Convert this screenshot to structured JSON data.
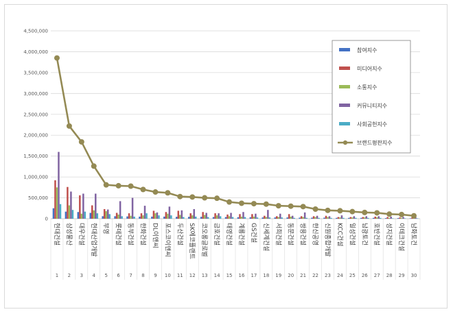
{
  "chart_data": {
    "type": "bar",
    "title": "",
    "xlabel": "",
    "ylabel": "",
    "ylim": [
      0,
      4500000
    ],
    "yticks": [
      "0",
      "500,000",
      "1,000,000",
      "1,500,000",
      "2,000,000",
      "2,500,000",
      "3,000,000",
      "3,500,000",
      "4,000,000",
      "4,500,000"
    ],
    "grid": true,
    "legend_position": "right",
    "ranks": [
      "1",
      "2",
      "3",
      "4",
      "5",
      "6",
      "7",
      "8",
      "9",
      "10",
      "11",
      "12",
      "13",
      "14",
      "15",
      "16",
      "17",
      "18",
      "19",
      "20",
      "21",
      "22",
      "23",
      "24",
      "25",
      "26",
      "27",
      "28",
      "29",
      "30"
    ],
    "categories": [
      "현대건설",
      "삼성물산",
      "대우건설",
      "현대산업개발",
      "부영",
      "롯데건설",
      "동부건설",
      "한화건설",
      "DL이앤씨",
      "포스코이앤씨",
      "두산건설",
      "SK에코플랜트",
      "코오롱글로벌",
      "금호건설",
      "태영건설",
      "계룡건설",
      "GS건설",
      "신세계건설",
      "서희건설",
      "동문건설",
      "쌍용건설",
      "한신공영",
      "신원종합개발",
      "KCC건설",
      "일성건설",
      "남광토건",
      "호반건설",
      "성지건설",
      "이테크건설",
      "남화토건"
    ],
    "series": [
      {
        "name": "참여지수",
        "color": "#4472c4",
        "kind": "bar",
        "values": [
          250000,
          170000,
          160000,
          140000,
          60000,
          60000,
          55000,
          50000,
          50000,
          50000,
          45000,
          45000,
          45000,
          40000,
          40000,
          35000,
          35000,
          30000,
          30000,
          30000,
          25000,
          25000,
          25000,
          20000,
          20000,
          20000,
          20000,
          15000,
          15000,
          10000
        ]
      },
      {
        "name": "미디어지수",
        "color": "#c0504d",
        "kind": "bar",
        "values": [
          920000,
          760000,
          560000,
          320000,
          230000,
          140000,
          130000,
          130000,
          190000,
          160000,
          190000,
          130000,
          160000,
          130000,
          100000,
          110000,
          110000,
          70000,
          60000,
          110000,
          60000,
          60000,
          70000,
          40000,
          40000,
          40000,
          50000,
          40000,
          30000,
          30000
        ]
      },
      {
        "name": "소통지수",
        "color": "#9bbb59",
        "kind": "bar",
        "values": [
          750000,
          320000,
          120000,
          200000,
          180000,
          100000,
          70000,
          80000,
          130000,
          120000,
          90000,
          80000,
          90000,
          80000,
          60000,
          50000,
          50000,
          40000,
          40000,
          50000,
          40000,
          40000,
          40000,
          30000,
          30000,
          30000,
          30000,
          20000,
          20000,
          20000
        ]
      },
      {
        "name": "커뮤니티지수",
        "color": "#8064a2",
        "kind": "bar",
        "values": [
          1600000,
          650000,
          600000,
          600000,
          220000,
          420000,
          500000,
          310000,
          150000,
          290000,
          200000,
          230000,
          140000,
          130000,
          140000,
          160000,
          120000,
          210000,
          120000,
          70000,
          150000,
          70000,
          60000,
          80000,
          60000,
          60000,
          60000,
          50000,
          40000,
          30000
        ]
      },
      {
        "name": "사회공헌지수",
        "color": "#4bacc6",
        "kind": "bar",
        "values": [
          350000,
          210000,
          170000,
          130000,
          110000,
          60000,
          50000,
          130000,
          80000,
          80000,
          40000,
          50000,
          40000,
          60000,
          40000,
          40000,
          30000,
          30000,
          30000,
          20000,
          20000,
          20000,
          20000,
          20000,
          20000,
          20000,
          20000,
          10000,
          10000,
          10000
        ]
      },
      {
        "name": "브랜드평판지수",
        "color": "#948a54",
        "kind": "line",
        "values": [
          3850000,
          2220000,
          1840000,
          1260000,
          810000,
          790000,
          780000,
          700000,
          640000,
          620000,
          530000,
          520000,
          500000,
          490000,
          400000,
          370000,
          360000,
          350000,
          310000,
          300000,
          290000,
          230000,
          200000,
          190000,
          170000,
          150000,
          140000,
          110000,
          100000,
          70000
        ]
      }
    ]
  }
}
